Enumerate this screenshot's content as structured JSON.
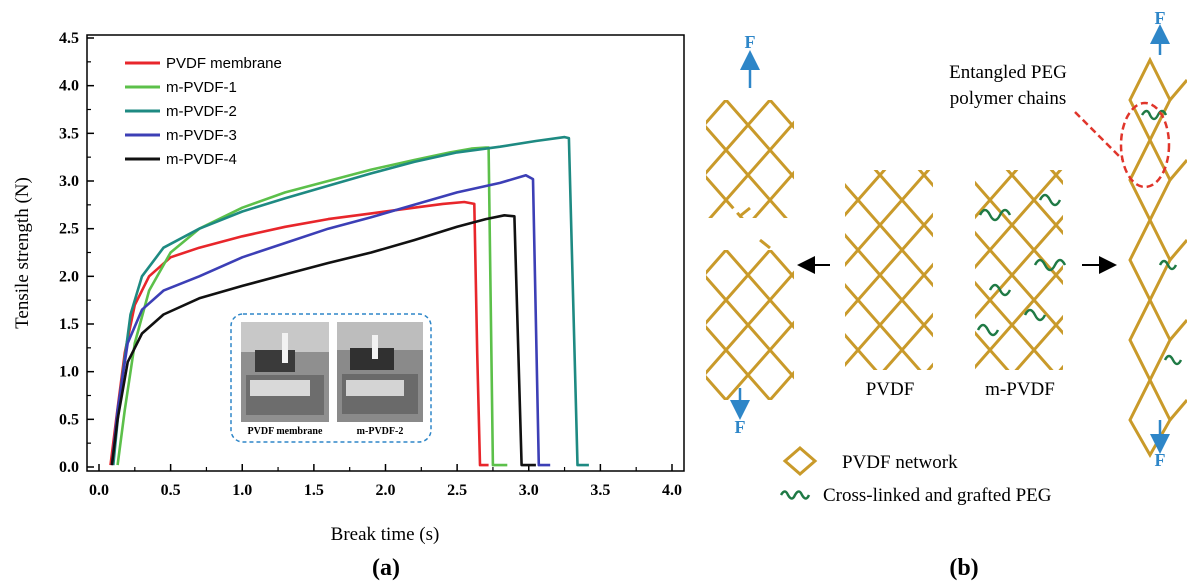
{
  "chart_data": {
    "type": "line",
    "xlabel": "Break time (s)",
    "ylabel": "Tensile strength (N)",
    "xlim": [
      0.0,
      4.0
    ],
    "ylim": [
      0.0,
      4.5
    ],
    "xticks": [
      0.0,
      0.5,
      1.0,
      1.5,
      2.0,
      2.5,
      3.0,
      3.5,
      4.0
    ],
    "yticks": [
      0.0,
      0.5,
      1.0,
      1.5,
      2.0,
      2.5,
      3.0,
      3.5,
      4.0,
      4.5
    ],
    "legend_position": "top-left",
    "series": [
      {
        "name": "PVDF membrane",
        "color": "#e8262b",
        "x": [
          0.08,
          0.12,
          0.18,
          0.25,
          0.35,
          0.5,
          0.7,
          1.0,
          1.3,
          1.6,
          1.9,
          2.2,
          2.4,
          2.55,
          2.62,
          2.64,
          2.66,
          2.72
        ],
        "y": [
          0.02,
          0.5,
          1.2,
          1.7,
          2.0,
          2.2,
          2.3,
          2.42,
          2.52,
          2.6,
          2.66,
          2.72,
          2.76,
          2.78,
          2.76,
          1.2,
          0.02,
          0.02
        ]
      },
      {
        "name": "m-PVDF-1",
        "color": "#5cc04a",
        "x": [
          0.13,
          0.18,
          0.25,
          0.35,
          0.5,
          0.7,
          1.0,
          1.3,
          1.6,
          1.9,
          2.2,
          2.45,
          2.6,
          2.7,
          2.72,
          2.75,
          2.85
        ],
        "y": [
          0.02,
          0.6,
          1.3,
          1.85,
          2.25,
          2.5,
          2.72,
          2.88,
          3.0,
          3.12,
          3.22,
          3.3,
          3.34,
          3.35,
          3.35,
          0.02,
          0.02
        ]
      },
      {
        "name": "m-PVDF-2",
        "color": "#1e8a82",
        "x": [
          0.1,
          0.15,
          0.22,
          0.3,
          0.45,
          0.7,
          1.0,
          1.3,
          1.6,
          1.9,
          2.2,
          2.5,
          2.8,
          3.05,
          3.25,
          3.28,
          3.34,
          3.42
        ],
        "y": [
          0.02,
          0.8,
          1.6,
          2.0,
          2.3,
          2.5,
          2.68,
          2.82,
          2.95,
          3.08,
          3.2,
          3.3,
          3.36,
          3.42,
          3.46,
          3.45,
          0.02,
          0.02
        ]
      },
      {
        "name": "m-PVDF-3",
        "color": "#3c3fb6",
        "x": [
          0.09,
          0.13,
          0.2,
          0.3,
          0.45,
          0.7,
          1.0,
          1.3,
          1.6,
          1.9,
          2.2,
          2.5,
          2.8,
          2.98,
          3.03,
          3.07,
          3.15
        ],
        "y": [
          0.02,
          0.6,
          1.3,
          1.65,
          1.85,
          2.0,
          2.2,
          2.35,
          2.5,
          2.62,
          2.75,
          2.88,
          2.98,
          3.06,
          3.02,
          0.02,
          0.02
        ]
      },
      {
        "name": "m-PVDF-4",
        "color": "#111111",
        "x": [
          0.09,
          0.13,
          0.2,
          0.3,
          0.45,
          0.7,
          1.0,
          1.3,
          1.6,
          1.9,
          2.2,
          2.5,
          2.7,
          2.83,
          2.9,
          2.95,
          3.05
        ],
        "y": [
          0.02,
          0.5,
          1.1,
          1.4,
          1.6,
          1.77,
          1.9,
          2.02,
          2.14,
          2.25,
          2.38,
          2.52,
          2.6,
          2.64,
          2.63,
          0.02,
          0.02
        ]
      }
    ]
  },
  "inset": {
    "left_caption": "PVDF membrane",
    "right_caption": "m-PVDF-2"
  },
  "panels": {
    "a": "(a)",
    "b": "(b)"
  },
  "diagram": {
    "force_label": "F",
    "pvdf_label": "PVDF",
    "mpvdf_label": "m-PVDF",
    "callout_line1": "Entangled PEG",
    "callout_line2": "polymer chains",
    "legend_network": "PVDF network",
    "legend_peg": "Cross-linked and grafted PEG",
    "colors": {
      "network": "#c99a2a",
      "peg": "#1f7a45",
      "force": "#2e86c8",
      "callout": "#e0352b"
    }
  }
}
